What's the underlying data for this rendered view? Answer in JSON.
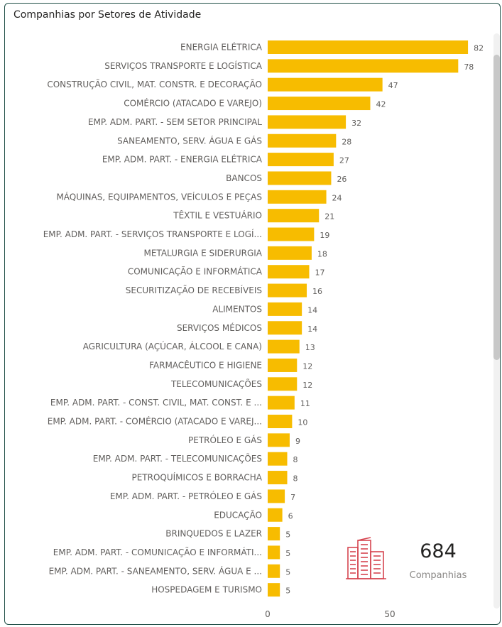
{
  "title": "Companhias por Setores de Atividade",
  "kpi": {
    "value": "684",
    "label": "Companhias",
    "icon": "buildings-icon"
  },
  "colors": {
    "bar": "#F7BC00",
    "label": "#605E5C",
    "value": "#605E5C",
    "icon": "#D64550"
  },
  "chart_data": {
    "type": "bar",
    "orientation": "horizontal",
    "title": "Companhias por Setores de Atividade",
    "xlim": [
      0,
      82
    ],
    "xticks": [
      "0",
      "50"
    ],
    "grid": false,
    "categories": [
      "ENERGIA ELÉTRICA",
      "SERVIÇOS TRANSPORTE E LOGÍSTICA",
      "CONSTRUÇÃO CIVIL, MAT. CONSTR. E DECORAÇÃO",
      "COMÉRCIO (ATACADO E VAREJO)",
      "EMP. ADM. PART. - SEM SETOR PRINCIPAL",
      "SANEAMENTO, SERV. ÁGUA E GÁS",
      "EMP. ADM. PART. - ENERGIA ELÉTRICA",
      "BANCOS",
      "MÁQUINAS, EQUIPAMENTOS, VEÍCULOS E PEÇAS",
      "TÊXTIL E VESTUÁRIO",
      "EMP. ADM. PART. - SERVIÇOS TRANSPORTE E LOGÍ...",
      "METALURGIA E SIDERURGIA",
      "COMUNICAÇÃO E INFORMÁTICA",
      "SECURITIZAÇÃO DE RECEBÍVEIS",
      "ALIMENTOS",
      "SERVIÇOS MÉDICOS",
      "AGRICULTURA (AÇÚCAR, ÁLCOOL E CANA)",
      "FARMACÊUTICO E HIGIENE",
      "TELECOMUNICAÇÕES",
      "EMP. ADM. PART. - CONST. CIVIL, MAT. CONST. E ...",
      "EMP. ADM. PART. - COMÉRCIO (ATACADO E VAREJ...",
      "PETRÓLEO E GÁS",
      "EMP. ADM. PART. - TELECOMUNICAÇÕES",
      "PETROQUÍMICOS E BORRACHA",
      "EMP. ADM. PART. - PETRÓLEO E GÁS",
      "EDUCAÇÃO",
      "BRINQUEDOS E LAZER",
      "EMP. ADM. PART. - COMUNICAÇÃO E INFORMÁTI...",
      "EMP. ADM. PART. - SANEAMENTO, SERV. ÁGUA E ...",
      "HOSPEDAGEM E TURISMO"
    ],
    "values": [
      82,
      78,
      47,
      42,
      32,
      28,
      27,
      26,
      24,
      21,
      19,
      18,
      17,
      16,
      14,
      14,
      13,
      12,
      12,
      11,
      10,
      9,
      8,
      8,
      7,
      6,
      5,
      5,
      5,
      5
    ]
  }
}
